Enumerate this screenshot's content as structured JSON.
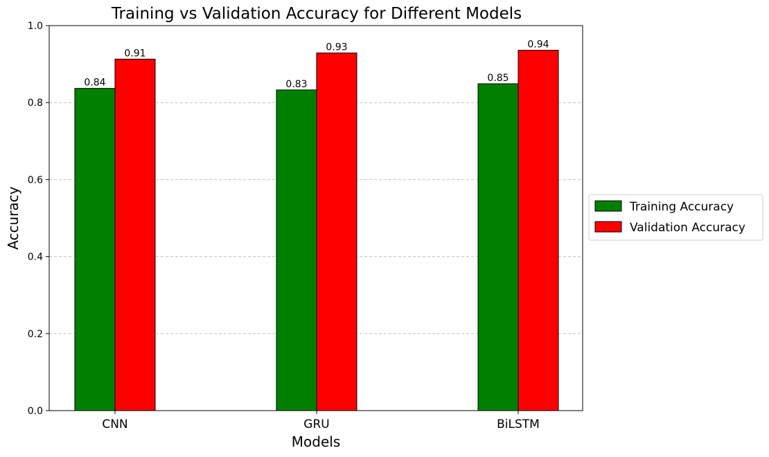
{
  "chart_data": {
    "type": "bar",
    "title": "Training vs Validation Accuracy for Different Models",
    "xlabel": "Models",
    "ylabel": "Accuracy",
    "categories": [
      "CNN",
      "GRU",
      "BiLSTM"
    ],
    "series": [
      {
        "name": "Training Accuracy",
        "color": "#008000",
        "values": [
          0.837,
          0.833,
          0.849
        ],
        "labels": [
          "0.84",
          "0.83",
          "0.85"
        ]
      },
      {
        "name": "Validation Accuracy",
        "color": "#ff0000",
        "values": [
          0.913,
          0.929,
          0.936
        ],
        "labels": [
          "0.91",
          "0.93",
          "0.94"
        ]
      }
    ],
    "ylim": [
      0.0,
      1.0
    ],
    "yticks": [
      "0.0",
      "0.2",
      "0.4",
      "0.6",
      "0.8",
      "1.0"
    ],
    "grid": "y-dashed",
    "legend_position": "right-outside"
  }
}
